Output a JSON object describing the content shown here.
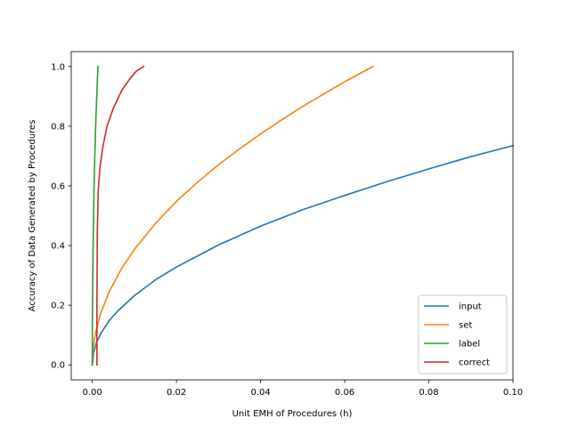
{
  "chart_data": {
    "type": "line",
    "xlabel": "Unit EMH of Procedures (h)",
    "ylabel": "Accuracy of Data Generated by Procedures",
    "xlim": [
      -0.005,
      0.1
    ],
    "ylim": [
      -0.05,
      1.05
    ],
    "xticks": [
      0.0,
      0.02,
      0.04,
      0.06,
      0.08,
      0.1
    ],
    "xtick_labels": [
      "0.00",
      "0.02",
      "0.04",
      "0.06",
      "0.08",
      "0.10"
    ],
    "yticks": [
      0.0,
      0.2,
      0.4,
      0.6,
      0.8,
      1.0
    ],
    "ytick_labels": [
      "0.0",
      "0.2",
      "0.4",
      "0.6",
      "0.8",
      "1.0"
    ],
    "grid": false,
    "legend_position": "lower-right",
    "series": [
      {
        "name": "input",
        "color": "#1f77b4",
        "x": [
          0.0,
          0.0003,
          0.001,
          0.002,
          0.004,
          0.006,
          0.01,
          0.015,
          0.02,
          0.03,
          0.04,
          0.05,
          0.06,
          0.07,
          0.08,
          0.09,
          0.1
        ],
        "y": [
          0.0,
          0.04,
          0.075,
          0.105,
          0.148,
          0.18,
          0.232,
          0.285,
          0.328,
          0.402,
          0.465,
          0.52,
          0.568,
          0.614,
          0.657,
          0.698,
          0.735
        ]
      },
      {
        "name": "set",
        "color": "#ff7f0e",
        "x": [
          0.0,
          0.0002,
          0.0008,
          0.002,
          0.004,
          0.007,
          0.01,
          0.015,
          0.02,
          0.025,
          0.03,
          0.035,
          0.04,
          0.045,
          0.05,
          0.055,
          0.06,
          0.0667
        ],
        "y": [
          0.0,
          0.055,
          0.11,
          0.173,
          0.245,
          0.324,
          0.387,
          0.474,
          0.548,
          0.612,
          0.671,
          0.724,
          0.774,
          0.821,
          0.866,
          0.908,
          0.949,
          1.0
        ]
      },
      {
        "name": "label",
        "color": "#2ca02c",
        "x": [
          0.0,
          1e-05,
          3e-05,
          8e-05,
          0.00015,
          0.00025,
          0.0004,
          0.0006,
          0.0008,
          0.001,
          0.0012,
          0.00135
        ],
        "y": [
          0.0,
          0.08,
          0.15,
          0.25,
          0.35,
          0.45,
          0.58,
          0.7,
          0.8,
          0.88,
          0.95,
          1.0
        ]
      },
      {
        "name": "correct",
        "color": "#d62728",
        "x": [
          0.0011,
          0.0011,
          0.0012,
          0.0014,
          0.0018,
          0.0025,
          0.0035,
          0.005,
          0.007,
          0.009,
          0.0105,
          0.0122
        ],
        "y": [
          0.0,
          0.2,
          0.45,
          0.58,
          0.66,
          0.73,
          0.8,
          0.86,
          0.92,
          0.96,
          0.985,
          1.0
        ]
      }
    ]
  }
}
